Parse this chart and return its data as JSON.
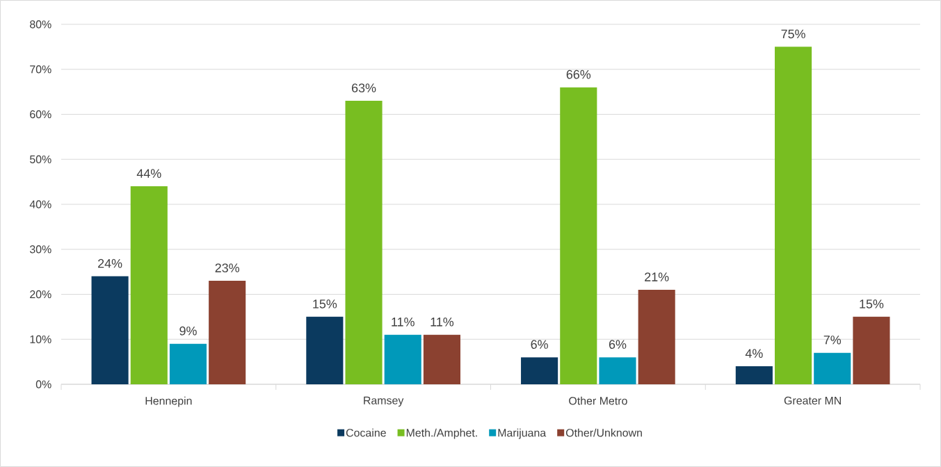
{
  "chart_data": {
    "type": "bar",
    "categories": [
      "Hennepin",
      "Ramsey",
      "Other Metro",
      "Greater MN"
    ],
    "series": [
      {
        "name": "Cocaine",
        "color": "#0b3a5f",
        "values": [
          24,
          15,
          6,
          4
        ],
        "value_labels": [
          "24%",
          "15%",
          "6%",
          "4%"
        ]
      },
      {
        "name": "Meth./Amphet.",
        "color": "#78be21",
        "values": [
          44,
          63,
          66,
          75
        ],
        "value_labels": [
          "44%",
          "63%",
          "66%",
          "75%"
        ]
      },
      {
        "name": "Marijuana",
        "color": "#0099ba",
        "values": [
          9,
          11,
          6,
          7
        ],
        "value_labels": [
          "9%",
          "11%",
          "6%",
          "7%"
        ]
      },
      {
        "name": "Other/Unknown",
        "color": "#8b4130",
        "values": [
          23,
          11,
          21,
          15
        ],
        "value_labels": [
          "23%",
          "11%",
          "21%",
          "15%"
        ]
      }
    ],
    "ylim": [
      0,
      80
    ],
    "yticks": [
      {
        "value": 0,
        "label": "0%"
      },
      {
        "value": 10,
        "label": "10%"
      },
      {
        "value": 20,
        "label": "20%"
      },
      {
        "value": 30,
        "label": "30%"
      },
      {
        "value": 40,
        "label": "40%"
      },
      {
        "value": 50,
        "label": "50%"
      },
      {
        "value": 60,
        "label": "60%"
      },
      {
        "value": 70,
        "label": "70%"
      },
      {
        "value": 80,
        "label": "80%"
      }
    ],
    "grid": "y",
    "legend": "bottom"
  }
}
